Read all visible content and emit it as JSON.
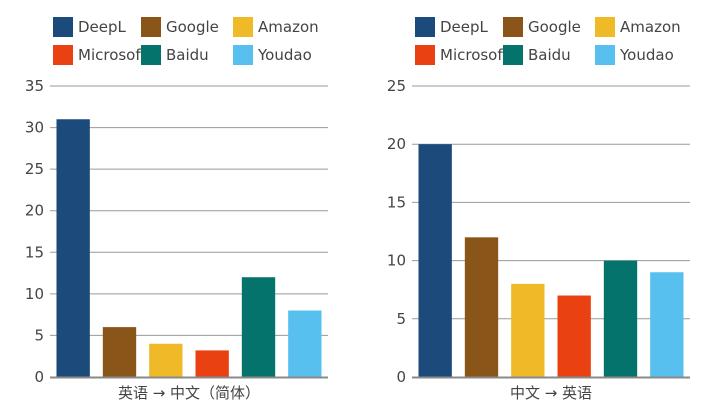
{
  "chart_data": [
    {
      "type": "bar",
      "xlabel": "英语 → 中文（简体）",
      "ylabel": "",
      "ylim": [
        0,
        35
      ],
      "yticks": [
        0,
        5,
        10,
        15,
        20,
        25,
        30,
        35
      ],
      "grid": true,
      "legend_position": "top",
      "categories": [
        "DeepL",
        "Google",
        "Amazon",
        "Microsoft",
        "Baidu",
        "Youdao"
      ],
      "colors": [
        "#1c4a7b",
        "#8a5518",
        "#f0b928",
        "#ea4113",
        "#03736c",
        "#58c0ef"
      ],
      "values": [
        31,
        6,
        4,
        3.2,
        12,
        8
      ]
    },
    {
      "type": "bar",
      "xlabel": "中文 → 英语",
      "ylabel": "",
      "ylim": [
        0,
        25
      ],
      "yticks": [
        0,
        5,
        10,
        15,
        20,
        25
      ],
      "grid": true,
      "legend_position": "top",
      "categories": [
        "DeepL",
        "Google",
        "Amazon",
        "Microsoft",
        "Baidu",
        "Youdao"
      ],
      "colors": [
        "#1c4a7b",
        "#8a5518",
        "#f0b928",
        "#ea4113",
        "#03736c",
        "#58c0ef"
      ],
      "values": [
        20,
        12,
        8,
        7,
        10,
        9
      ]
    }
  ]
}
